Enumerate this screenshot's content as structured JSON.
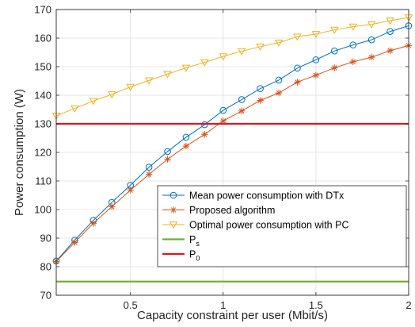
{
  "chart_data": {
    "type": "line",
    "xlabel": "Capacity constraint per user (Mbit/s)",
    "ylabel": "Power consumption (W)",
    "xlim": [
      0.1,
      2
    ],
    "ylim": [
      70,
      170
    ],
    "x_ticks": [
      "0.5",
      "1",
      "1.5",
      "2"
    ],
    "y_ticks": [
      "70",
      "80",
      "90",
      "100",
      "110",
      "120",
      "130",
      "140",
      "150",
      "160",
      "170"
    ],
    "grid": true,
    "legend_position": "bottom-right",
    "x": [
      0.1,
      0.2,
      0.3,
      0.4,
      0.5,
      0.6,
      0.7,
      0.8,
      0.9,
      1.0,
      1.1,
      1.2,
      1.3,
      1.4,
      1.5,
      1.6,
      1.7,
      1.8,
      1.9,
      2.0
    ],
    "series": [
      {
        "name": "Mean power consumption with DTx",
        "color": "#0072BD",
        "marker": "circle",
        "values": [
          82,
          89.3,
          96.2,
          102.5,
          108.5,
          114.8,
          120.3,
          125.3,
          129.7,
          134.7,
          138.5,
          142.3,
          145.3,
          149.5,
          152.4,
          155.5,
          157.6,
          159.4,
          162.3,
          164.3
        ]
      },
      {
        "name": "Proposed algorithm",
        "color": "#D95319",
        "marker": "asterisk",
        "values": [
          81.8,
          88.5,
          95.2,
          101,
          106.8,
          112.3,
          117.6,
          122.2,
          126.3,
          131,
          134.5,
          138.2,
          140.8,
          144.6,
          147,
          149.6,
          151.7,
          153.3,
          155.6,
          157.4
        ]
      },
      {
        "name": "Optimal power consumption with PC",
        "color": "#EDB120",
        "marker": "triangle-down",
        "values": [
          132.8,
          135.4,
          138,
          140.3,
          142.9,
          145.2,
          147.4,
          149.6,
          151.5,
          153.6,
          155.4,
          157,
          158.4,
          160.5,
          161.4,
          162.9,
          164,
          164.8,
          166.1,
          167.2
        ]
      },
      {
        "name": "P",
        "sub": "s",
        "color": "#77AC30",
        "constant": 74.8
      },
      {
        "name": "P",
        "sub": "0",
        "color": "#E3161D",
        "constant": 130
      }
    ]
  }
}
